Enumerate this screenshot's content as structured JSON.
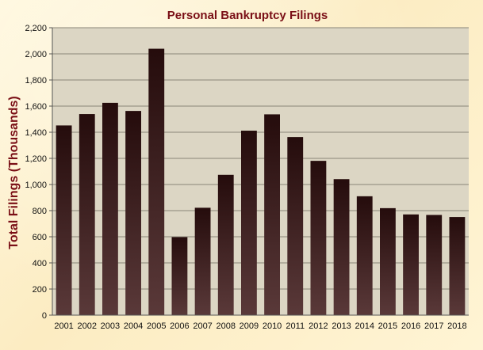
{
  "chart_data": {
    "type": "bar",
    "title": "Personal Bankruptcy Filings",
    "xlabel": "",
    "ylabel": "Total Filings (Thousands)",
    "ylim": [
      0,
      2200
    ],
    "ytick_step": 200,
    "ytick_labels": [
      "0",
      "200",
      "400",
      "600",
      "800",
      "1,000",
      "1,200",
      "1,400",
      "1,600",
      "1,800",
      "2,000",
      "2,200"
    ],
    "categories": [
      "2001",
      "2002",
      "2003",
      "2004",
      "2005",
      "2006",
      "2007",
      "2008",
      "2009",
      "2010",
      "2011",
      "2012",
      "2013",
      "2014",
      "2015",
      "2016",
      "2017",
      "2018"
    ],
    "values": [
      1452,
      1539,
      1625,
      1563,
      2039,
      597,
      822,
      1074,
      1412,
      1537,
      1363,
      1181,
      1041,
      910,
      819,
      771,
      767,
      751
    ],
    "grid": true,
    "legend": "none"
  },
  "colors": {
    "bar_top": "#250c0c",
    "bar_bottom": "#5a3939",
    "plot_background": "#dcd6c4",
    "gridline": "#8a8577",
    "title": "#7a0f16",
    "axis_text": "#111111"
  }
}
